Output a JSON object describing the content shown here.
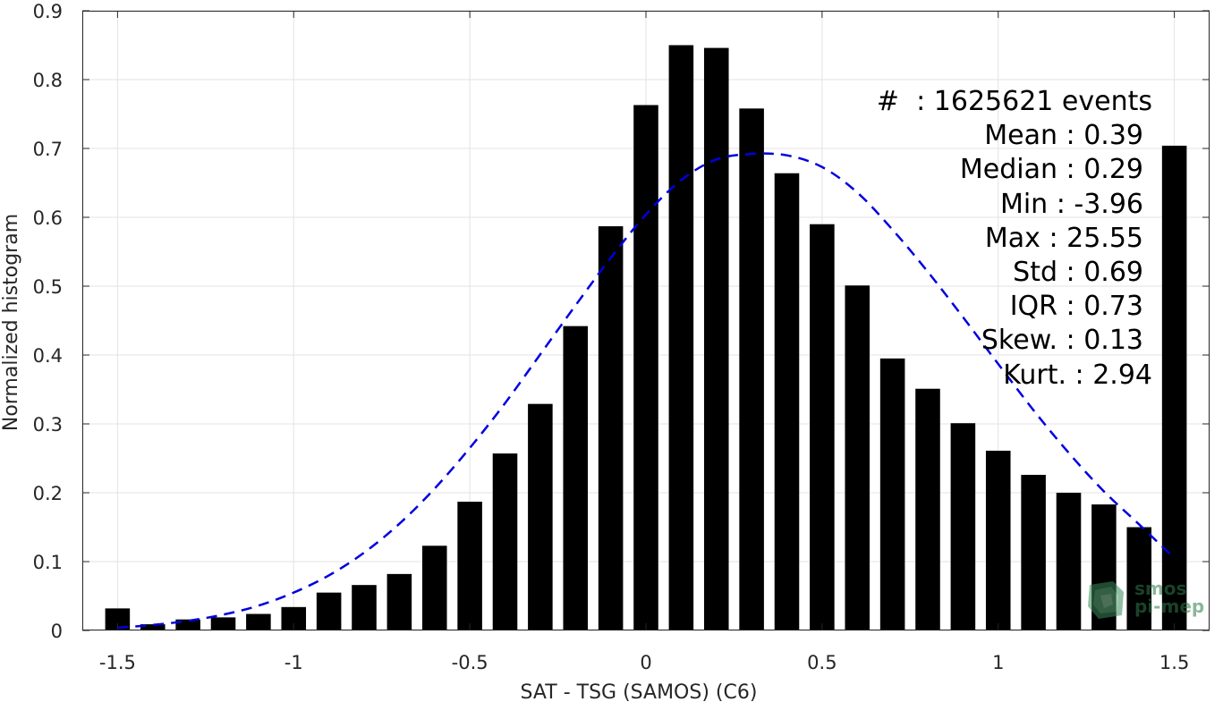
{
  "chart_data": {
    "type": "bar",
    "title": "",
    "xlabel": "SAT - TSG (SAMOS) (C6)",
    "ylabel": "Normalized histogram",
    "xlim": [
      -1.6,
      1.6
    ],
    "ylim": [
      0,
      0.9
    ],
    "xticks": [
      -1.5,
      -1,
      -0.5,
      0,
      0.5,
      1,
      1.5
    ],
    "xtick_labels": [
      "-1.5",
      "-1",
      "-0.5",
      "0",
      "0.5",
      "1",
      "1.5"
    ],
    "yticks": [
      0,
      0.1,
      0.2,
      0.3,
      0.4,
      0.5,
      0.6,
      0.7,
      0.8,
      0.9
    ],
    "ytick_labels": [
      "0",
      "0.1",
      "0.2",
      "0.3",
      "0.4",
      "0.5",
      "0.6",
      "0.7",
      "0.8",
      "0.9"
    ],
    "grid": true,
    "bars": {
      "color": "#000000",
      "x": [
        -1.5,
        -1.4,
        -1.3,
        -1.2,
        -1.1,
        -1.0,
        -0.9,
        -0.8,
        -0.7,
        -0.6,
        -0.5,
        -0.4,
        -0.3,
        -0.2,
        -0.1,
        0.0,
        0.1,
        0.2,
        0.3,
        0.4,
        0.5,
        0.6,
        0.7,
        0.8,
        0.9,
        1.0,
        1.1,
        1.2,
        1.3,
        1.4,
        1.5
      ],
      "values": [
        0.032,
        0.009,
        0.016,
        0.019,
        0.024,
        0.034,
        0.055,
        0.066,
        0.082,
        0.123,
        0.187,
        0.257,
        0.329,
        0.442,
        0.587,
        0.763,
        0.85,
        0.846,
        0.758,
        0.664,
        0.59,
        0.501,
        0.395,
        0.351,
        0.301,
        0.261,
        0.226,
        0.2,
        0.183,
        0.15,
        0.704
      ]
    },
    "fit_curve": {
      "color": "#0000e0",
      "style": "dashed",
      "x": [
        -1.5,
        -1.4,
        -1.3,
        -1.2,
        -1.1,
        -1.0,
        -0.9,
        -0.8,
        -0.7,
        -0.6,
        -0.5,
        -0.4,
        -0.3,
        -0.2,
        -0.1,
        0.0,
        0.1,
        0.2,
        0.3,
        0.4,
        0.5,
        0.6,
        0.7,
        0.8,
        0.9,
        1.0,
        1.1,
        1.2,
        1.3,
        1.4,
        1.5
      ],
      "values": [
        0.004,
        0.008,
        0.014,
        0.023,
        0.036,
        0.055,
        0.08,
        0.113,
        0.155,
        0.206,
        0.265,
        0.33,
        0.401,
        0.472,
        0.541,
        0.604,
        0.654,
        0.684,
        0.692,
        0.69,
        0.673,
        0.636,
        0.582,
        0.521,
        0.455,
        0.387,
        0.32,
        0.258,
        0.202,
        0.154,
        0.105
      ]
    }
  },
  "stats_box": {
    "line1": "#  : 1625621 events",
    "line2": "Mean : 0.39",
    "line3": "Median : 0.29",
    "line4": "Min : -3.96",
    "line5": "Max : 25.55",
    "line6": "Std : 0.69",
    "line7": "IQR : 0.73",
    "line8": "Skew. : 0.13",
    "line9": "Kurt. : 2.94"
  },
  "logo": {
    "text1": "smos",
    "text2": "pi-mep",
    "icon": "smos-logo-icon",
    "color": "#2f7a4a"
  }
}
